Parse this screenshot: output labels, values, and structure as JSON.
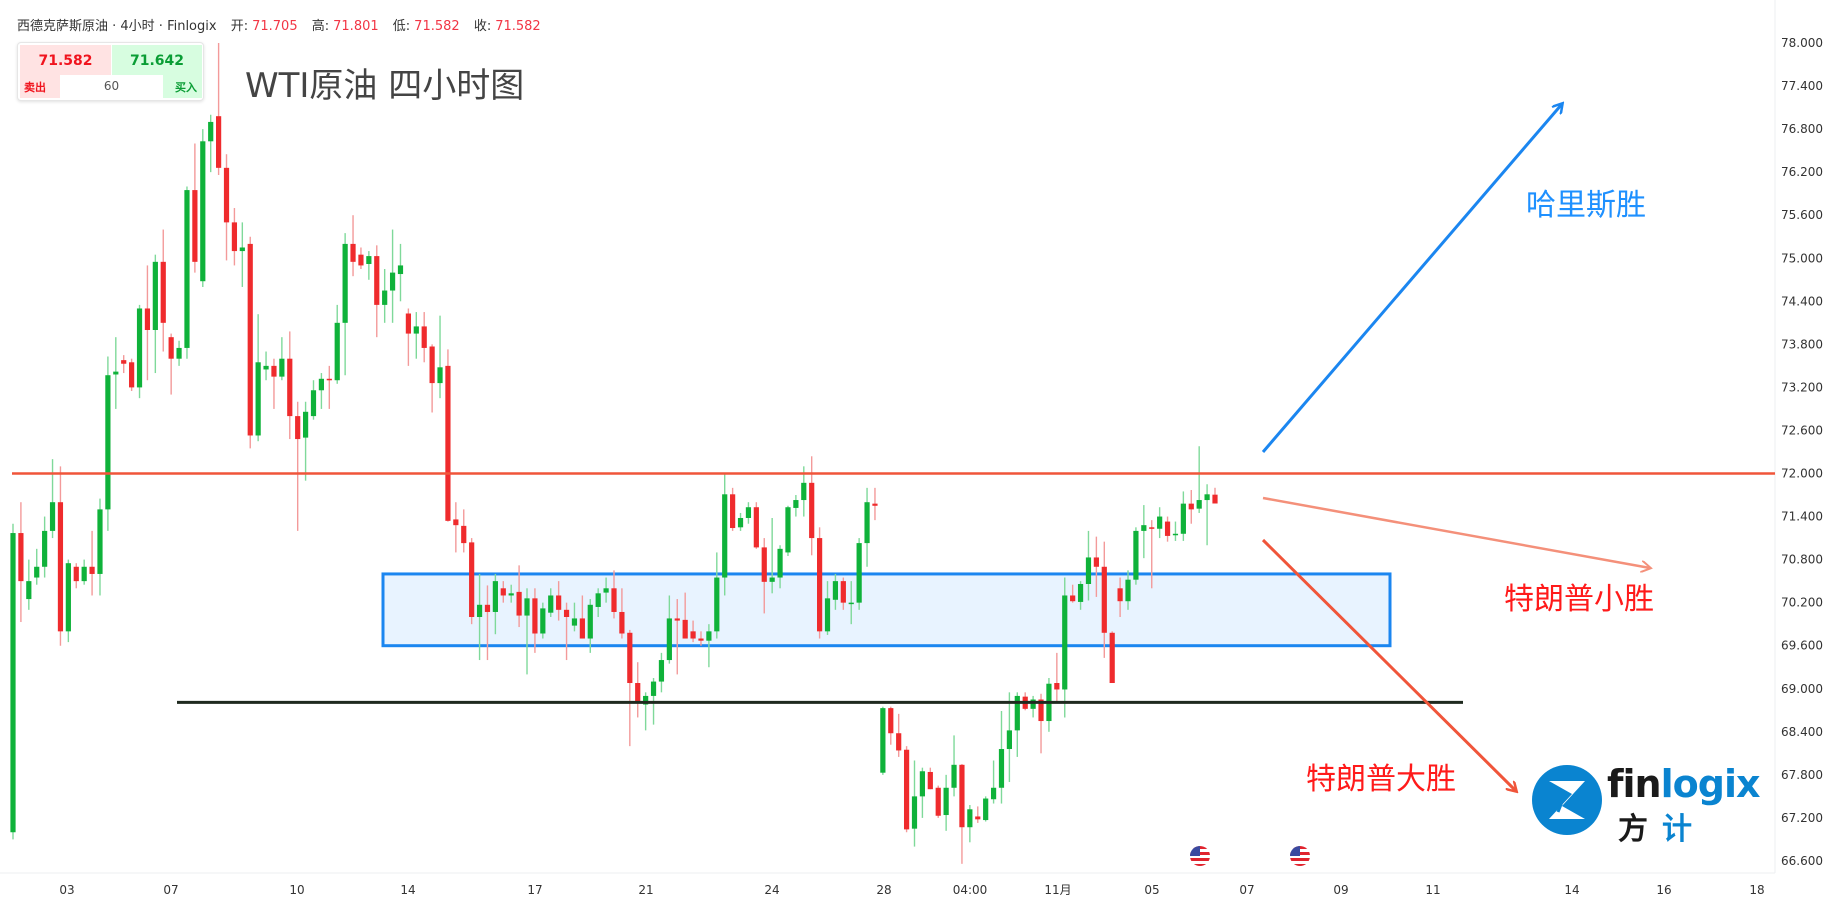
{
  "header": {
    "symbol": "西德克萨斯原油 · 4小时 · Finlogix",
    "open_label": "开:",
    "open": "71.705",
    "high_label": "高:",
    "high": "71.801",
    "low_label": "低:",
    "low": "71.582",
    "close_label": "收:",
    "close": "71.582"
  },
  "trade_panel": {
    "sell_price": "71.582",
    "buy_price": "71.642",
    "spread": "60",
    "sell_label": "卖出",
    "buy_label": "买入"
  },
  "chart_title": "WTI原油 四小时图",
  "annotations": {
    "harris": "哈里斯胜",
    "trump_small": "特朗普小胜",
    "trump_big": "特朗普大胜",
    "resistance_level": 72.0,
    "support_level": 68.81,
    "range_box": [
      69.6,
      70.6
    ]
  },
  "logo": {
    "text_latin": "finlogix",
    "text_cn": "方 计"
  },
  "colors": {
    "up": "#0fb23a",
    "down": "#ef2b2d",
    "resistance": "#f0553a",
    "box": "#1b86f0",
    "support": "#1f2a1f",
    "harris": "#1e90ff",
    "trump": "#ff1a1a",
    "logo_blue": "#0a84d0"
  },
  "event_icons": [
    "us-flag-icon",
    "us-flag-icon"
  ],
  "chart_data": {
    "type": "candlestick",
    "ohlc_order": [
      "open",
      "high",
      "low",
      "close"
    ],
    "ylim": [
      66.4,
      78.1
    ],
    "y_ticks": [
      "78.000",
      "77.400",
      "76.800",
      "76.200",
      "75.600",
      "75.000",
      "74.400",
      "73.800",
      "73.200",
      "72.600",
      "72.000",
      "71.400",
      "70.800",
      "70.200",
      "69.600",
      "69.000",
      "68.400",
      "67.800",
      "67.200",
      "66.600"
    ],
    "x_ticks": [
      "03",
      "07",
      "10",
      "14",
      "17",
      "21",
      "24",
      "28",
      "04:00",
      "11月",
      "05",
      "07",
      "09",
      "11",
      "14",
      "16",
      "18"
    ],
    "candles": [
      [
        67.0,
        71.3,
        66.9,
        71.17
      ],
      [
        71.17,
        71.6,
        69.93,
        70.5
      ],
      [
        70.25,
        70.8,
        70.1,
        70.5
      ],
      [
        70.55,
        70.95,
        70.45,
        70.7
      ],
      [
        70.7,
        71.4,
        70.55,
        71.2
      ],
      [
        71.2,
        72.2,
        71.1,
        71.6
      ],
      [
        71.6,
        72.1,
        69.6,
        69.8
      ],
      [
        69.8,
        70.8,
        69.65,
        70.75
      ],
      [
        70.7,
        70.75,
        70.4,
        70.5
      ],
      [
        70.5,
        70.8,
        70.45,
        70.7
      ],
      [
        70.7,
        71.2,
        70.3,
        70.6
      ],
      [
        70.6,
        71.65,
        70.3,
        71.5
      ],
      [
        71.5,
        73.63,
        71.2,
        73.37
      ],
      [
        73.38,
        73.9,
        72.9,
        73.42
      ],
      [
        73.58,
        73.65,
        73.4,
        73.53
      ],
      [
        73.55,
        73.6,
        73.15,
        73.2
      ],
      [
        73.2,
        74.35,
        73.05,
        74.3
      ],
      [
        74.3,
        74.9,
        73.3,
        74.0
      ],
      [
        74.0,
        75.05,
        73.4,
        74.95
      ],
      [
        74.95,
        75.4,
        73.7,
        74.1
      ],
      [
        73.9,
        73.95,
        73.1,
        73.6
      ],
      [
        73.6,
        73.85,
        73.5,
        73.75
      ],
      [
        73.75,
        76.0,
        73.6,
        75.95
      ],
      [
        75.95,
        76.6,
        74.8,
        74.95
      ],
      [
        74.68,
        76.8,
        74.6,
        76.63
      ],
      [
        76.63,
        77.0,
        76.2,
        76.9
      ],
      [
        76.98,
        78.0,
        76.16,
        76.26
      ],
      [
        76.26,
        76.45,
        74.97,
        75.5
      ],
      [
        75.5,
        75.7,
        74.9,
        75.1
      ],
      [
        75.1,
        75.5,
        74.6,
        75.15
      ],
      [
        75.2,
        75.3,
        72.35,
        72.53
      ],
      [
        72.53,
        74.22,
        72.45,
        73.55
      ],
      [
        73.45,
        73.7,
        73.3,
        73.5
      ],
      [
        73.5,
        73.6,
        72.9,
        73.35
      ],
      [
        73.35,
        73.9,
        73.3,
        73.6
      ],
      [
        73.6,
        73.98,
        72.48,
        72.8
      ],
      [
        72.8,
        73.0,
        71.2,
        72.48
      ],
      [
        72.5,
        73.0,
        71.9,
        72.86
      ],
      [
        72.8,
        73.3,
        72.75,
        73.16
      ],
      [
        73.16,
        73.4,
        72.9,
        73.32
      ],
      [
        73.32,
        73.5,
        72.9,
        73.3
      ],
      [
        73.3,
        74.35,
        73.25,
        74.1
      ],
      [
        74.1,
        75.35,
        73.37,
        75.2
      ],
      [
        75.2,
        75.6,
        74.75,
        74.95
      ],
      [
        75.05,
        75.15,
        74.85,
        74.9
      ],
      [
        74.92,
        75.1,
        74.7,
        75.03
      ],
      [
        75.03,
        75.18,
        73.9,
        74.35
      ],
      [
        74.35,
        74.85,
        74.1,
        74.55
      ],
      [
        74.55,
        75.4,
        74.1,
        74.8
      ],
      [
        74.78,
        75.2,
        74.4,
        74.9
      ],
      [
        74.23,
        74.3,
        73.5,
        73.95
      ],
      [
        73.95,
        74.25,
        73.6,
        74.05
      ],
      [
        74.05,
        74.25,
        73.55,
        73.75
      ],
      [
        73.77,
        73.8,
        72.85,
        73.26
      ],
      [
        73.26,
        74.2,
        73.05,
        73.48
      ],
      [
        73.5,
        73.73,
        71.33,
        71.34
      ],
      [
        71.36,
        71.6,
        70.9,
        71.28
      ],
      [
        71.27,
        71.5,
        70.9,
        71.03
      ],
      [
        71.04,
        71.1,
        69.9,
        70.0
      ],
      [
        70.0,
        70.6,
        69.4,
        70.17
      ],
      [
        70.17,
        70.44,
        69.4,
        70.07
      ],
      [
        70.07,
        70.6,
        69.76,
        70.5
      ],
      [
        70.4,
        70.5,
        70.2,
        70.3
      ],
      [
        70.3,
        70.45,
        70.2,
        70.33
      ],
      [
        70.35,
        70.72,
        69.86,
        70.02
      ],
      [
        70.02,
        70.4,
        69.2,
        70.26
      ],
      [
        70.26,
        70.4,
        69.5,
        69.77
      ],
      [
        69.77,
        70.2,
        69.7,
        70.12
      ],
      [
        70.06,
        70.4,
        70.0,
        70.3
      ],
      [
        70.3,
        70.5,
        69.95,
        70.1
      ],
      [
        70.1,
        70.2,
        69.4,
        70.0
      ],
      [
        69.88,
        70.2,
        69.8,
        69.98
      ],
      [
        69.98,
        70.3,
        69.7,
        69.7
      ],
      [
        69.7,
        70.25,
        69.5,
        70.17
      ],
      [
        70.14,
        70.4,
        70.0,
        70.33
      ],
      [
        70.34,
        70.55,
        70.2,
        70.4
      ],
      [
        70.4,
        70.65,
        69.98,
        70.07
      ],
      [
        70.07,
        70.4,
        69.7,
        69.77
      ],
      [
        69.78,
        69.82,
        68.2,
        69.08
      ],
      [
        69.08,
        69.37,
        68.6,
        68.8
      ],
      [
        68.78,
        68.95,
        68.42,
        68.9
      ],
      [
        68.9,
        69.15,
        68.5,
        69.1
      ],
      [
        69.1,
        69.5,
        68.95,
        69.4
      ],
      [
        69.4,
        70.3,
        69.35,
        69.98
      ],
      [
        69.98,
        70.25,
        69.2,
        69.95
      ],
      [
        69.96,
        70.34,
        69.7,
        69.7
      ],
      [
        69.8,
        69.95,
        69.65,
        69.7
      ],
      [
        69.7,
        69.8,
        69.6,
        69.67
      ],
      [
        69.67,
        69.9,
        69.3,
        69.8
      ],
      [
        69.8,
        70.9,
        69.7,
        70.55
      ],
      [
        70.55,
        72.0,
        70.3,
        71.71
      ],
      [
        71.71,
        71.8,
        71.2,
        71.24
      ],
      [
        71.25,
        71.45,
        71.2,
        71.38
      ],
      [
        71.38,
        71.6,
        71.3,
        71.53
      ],
      [
        71.53,
        71.6,
        70.95,
        70.97
      ],
      [
        70.97,
        71.1,
        70.05,
        70.49
      ],
      [
        70.49,
        71.38,
        70.33,
        70.55
      ],
      [
        70.55,
        71.0,
        70.4,
        70.95
      ],
      [
        70.9,
        71.55,
        70.85,
        71.53
      ],
      [
        71.52,
        71.7,
        71.4,
        71.63
      ],
      [
        71.63,
        72.1,
        71.4,
        71.87
      ],
      [
        71.87,
        72.24,
        70.86,
        71.1
      ],
      [
        71.1,
        71.25,
        69.7,
        69.8
      ],
      [
        69.8,
        70.5,
        69.75,
        70.26
      ],
      [
        70.24,
        70.6,
        70.1,
        70.5
      ],
      [
        70.5,
        70.55,
        70.1,
        70.2
      ],
      [
        70.2,
        70.5,
        69.9,
        70.2
      ],
      [
        70.2,
        71.1,
        70.1,
        71.03
      ],
      [
        71.03,
        71.8,
        70.7,
        71.6
      ],
      [
        71.58,
        71.8,
        71.35,
        71.55
      ],
      [
        67.83,
        68.75,
        67.8,
        68.73
      ],
      [
        68.73,
        68.75,
        68.22,
        68.38
      ],
      [
        68.38,
        68.65,
        68.05,
        68.14
      ],
      [
        68.15,
        68.2,
        67.0,
        67.04
      ],
      [
        67.05,
        68.0,
        66.8,
        67.5
      ],
      [
        67.5,
        67.9,
        67.2,
        67.85
      ],
      [
        67.84,
        67.9,
        67.6,
        67.6
      ],
      [
        67.62,
        67.65,
        67.2,
        67.23
      ],
      [
        67.24,
        67.8,
        67.02,
        67.62
      ],
      [
        67.62,
        68.35,
        67.5,
        67.94
      ],
      [
        67.94,
        67.95,
        66.56,
        67.07
      ],
      [
        67.07,
        67.38,
        66.86,
        67.32
      ],
      [
        67.22,
        67.36,
        67.13,
        67.18
      ],
      [
        67.17,
        67.5,
        67.15,
        67.47
      ],
      [
        67.46,
        68.0,
        67.4,
        67.62
      ],
      [
        67.62,
        68.69,
        67.4,
        68.16
      ],
      [
        68.16,
        68.95,
        67.7,
        68.42
      ],
      [
        68.42,
        68.95,
        68.05,
        68.9
      ],
      [
        68.89,
        68.95,
        68.7,
        68.72
      ],
      [
        68.72,
        68.9,
        68.6,
        68.85
      ],
      [
        68.85,
        68.93,
        68.1,
        68.55
      ],
      [
        68.55,
        69.15,
        68.4,
        69.07
      ],
      [
        69.08,
        69.5,
        68.8,
        68.99
      ],
      [
        68.99,
        70.55,
        68.6,
        70.3
      ],
      [
        70.3,
        70.45,
        70.2,
        70.22
      ],
      [
        70.21,
        70.5,
        70.1,
        70.46
      ],
      [
        70.46,
        71.2,
        70.23,
        70.83
      ],
      [
        70.83,
        71.12,
        70.28,
        70.7
      ],
      [
        70.7,
        71.05,
        69.43,
        69.78
      ],
      [
        69.78,
        69.8,
        69.08,
        69.08
      ],
      [
        70.4,
        70.55,
        70.0,
        70.22
      ],
      [
        70.22,
        70.65,
        70.1,
        70.52
      ],
      [
        70.52,
        71.25,
        70.45,
        71.2
      ],
      [
        71.2,
        71.56,
        70.82,
        71.28
      ],
      [
        71.25,
        71.35,
        70.4,
        71.23
      ],
      [
        71.23,
        71.53,
        71.1,
        71.4
      ],
      [
        71.33,
        71.4,
        71.05,
        71.13
      ],
      [
        71.14,
        71.33,
        71.06,
        71.16
      ],
      [
        71.16,
        71.75,
        71.06,
        71.58
      ],
      [
        71.58,
        71.77,
        71.3,
        71.5
      ],
      [
        71.51,
        72.38,
        71.45,
        71.63
      ],
      [
        71.63,
        71.85,
        71.0,
        71.71
      ],
      [
        71.705,
        71.801,
        71.582,
        71.582
      ]
    ]
  }
}
